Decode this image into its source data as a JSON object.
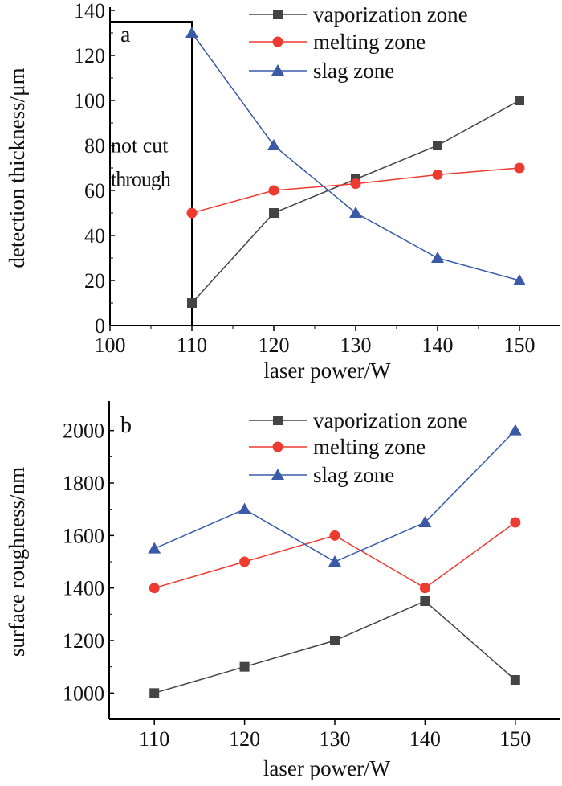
{
  "chart_data": [
    {
      "type": "line",
      "panel_label": "a",
      "title": "",
      "xlabel": "laser power/W",
      "ylabel": "detection thickness/μm",
      "xlim": [
        100,
        155
      ],
      "ylim": [
        0,
        140
      ],
      "xticks": [
        100,
        110,
        120,
        130,
        140,
        150
      ],
      "yticks": [
        0,
        20,
        40,
        60,
        80,
        100,
        120,
        140
      ],
      "x": [
        110,
        120,
        130,
        140,
        150
      ],
      "series": [
        {
          "name": "vaporization zone",
          "color": "#444444",
          "marker": "square",
          "values": [
            10,
            50,
            65,
            80,
            100
          ]
        },
        {
          "name": "melting zone",
          "color": "#ee3b32",
          "marker": "circle",
          "values": [
            50,
            60,
            63,
            67,
            70
          ]
        },
        {
          "name": "slag zone",
          "color": "#3a5aa8",
          "marker": "triangle",
          "values": [
            130,
            80,
            50,
            30,
            20
          ]
        }
      ],
      "annotation": {
        "line1": "not cut",
        "line2": "through",
        "region_x": [
          100,
          110
        ],
        "region_top": 135
      },
      "legend": "top-right",
      "grid": false
    },
    {
      "type": "line",
      "panel_label": "b",
      "title": "",
      "xlabel": "laser power/W",
      "ylabel": "surface roughness/nm",
      "xlim": [
        105,
        155
      ],
      "ylim": [
        900,
        2100
      ],
      "xticks": [
        110,
        120,
        130,
        140,
        150
      ],
      "yticks": [
        1000,
        1200,
        1400,
        1600,
        1800,
        2000
      ],
      "x": [
        110,
        120,
        130,
        140,
        150
      ],
      "series": [
        {
          "name": "vaporization zone",
          "color": "#444444",
          "marker": "square",
          "values": [
            1000,
            1100,
            1200,
            1350,
            1050
          ]
        },
        {
          "name": "melting zone",
          "color": "#ee3b32",
          "marker": "circle",
          "values": [
            1400,
            1500,
            1600,
            1400,
            1650
          ]
        },
        {
          "name": "slag zone",
          "color": "#3a5aa8",
          "marker": "triangle",
          "values": [
            1550,
            1700,
            1500,
            1650,
            2000
          ]
        }
      ],
      "legend": "top-right",
      "grid": false
    }
  ]
}
